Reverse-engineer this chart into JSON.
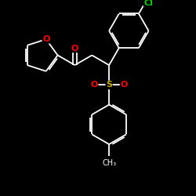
{
  "bg_color": "#000000",
  "bond_color": "#ffffff",
  "atom_colors": {
    "O": "#ff0000",
    "S": "#ccaa00",
    "Cl": "#00cc00",
    "C": "#ffffff"
  },
  "figsize": [
    2.5,
    2.5
  ],
  "dpi": 100,
  "bond_lw": 1.3,
  "font_size": 8
}
